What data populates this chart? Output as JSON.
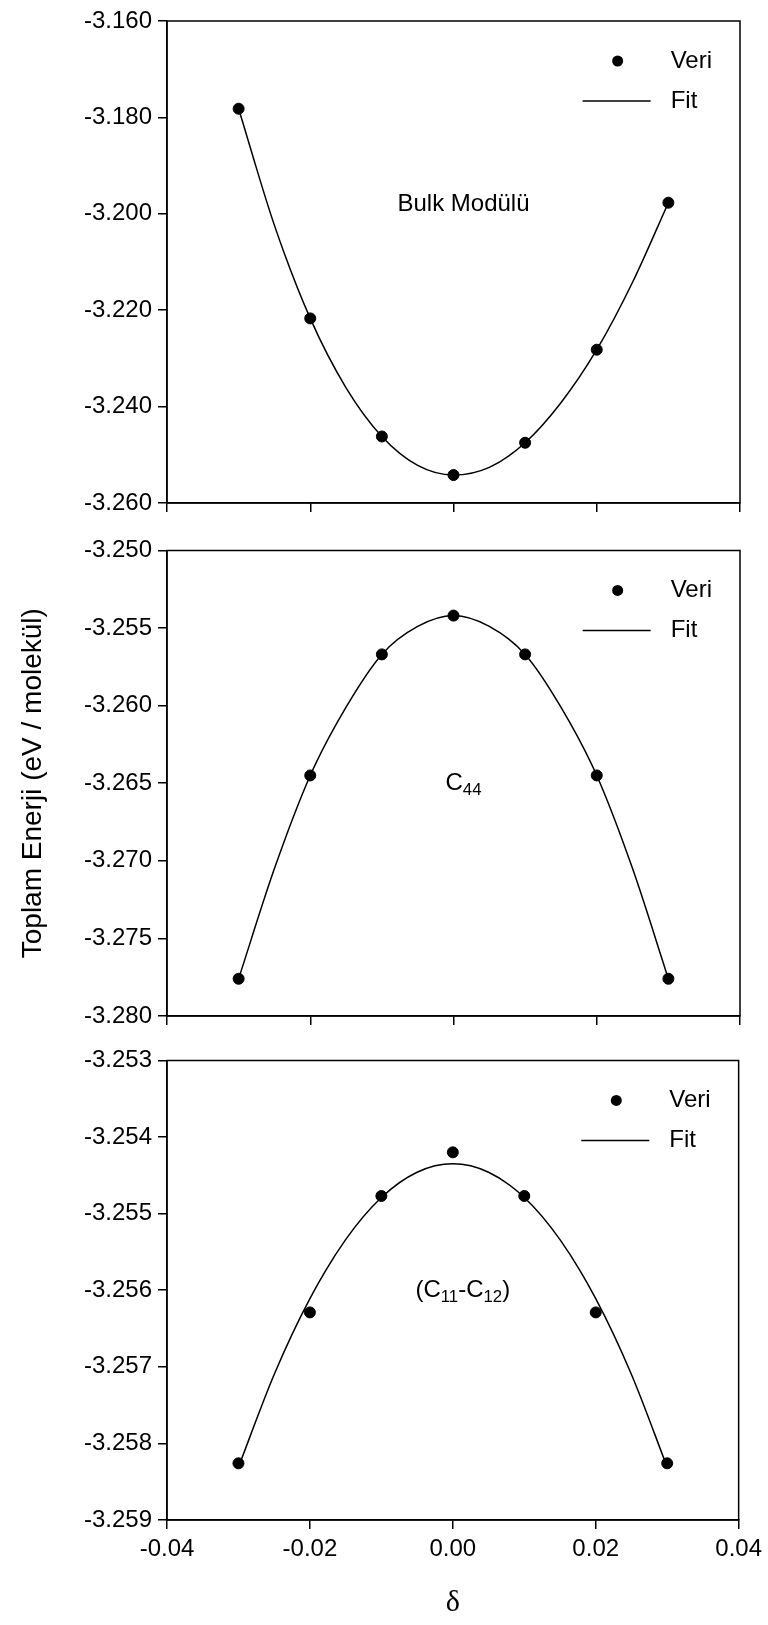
{
  "chart_data": [
    {
      "type": "scatter",
      "annotations": [
        "Bulk Modülü"
      ],
      "x": [
        -0.03,
        -0.02,
        -0.01,
        0.0,
        0.01,
        0.02,
        0.03
      ],
      "series": [
        {
          "name": "Veri",
          "type": "scatter",
          "marker": "circle",
          "color": "#000000",
          "values": [
            -3.1782,
            -3.2217,
            -3.2462,
            -3.2542,
            -3.2475,
            -3.2282,
            -3.1977
          ]
        },
        {
          "name": "Fit",
          "type": "line",
          "color": "#000000",
          "x": [
            -0.03,
            -0.025,
            -0.02,
            -0.015,
            -0.01,
            -0.005,
            0.0,
            0.005,
            0.01,
            0.015,
            0.02,
            0.025,
            0.03
          ],
          "values": [
            -3.1782,
            -3.2024,
            -3.2217,
            -3.2361,
            -3.2462,
            -3.2522,
            -3.2542,
            -3.2526,
            -3.2475,
            -3.2392,
            -3.2282,
            -3.2142,
            -3.1977
          ]
        }
      ],
      "xlim": [
        -0.04,
        0.04
      ],
      "xticks": [
        -0.04,
        -0.02,
        0,
        0.02,
        0.04
      ],
      "ylim": [
        -3.26,
        -3.16
      ],
      "yticks": [
        {
          "value": -3.26,
          "label": "-3.260"
        },
        {
          "value": -3.24,
          "label": "-3.240"
        },
        {
          "value": -3.22,
          "label": "-3.220"
        },
        {
          "value": -3.2,
          "label": "-3.200"
        },
        {
          "value": -3.18,
          "label": "-3.180"
        },
        {
          "value": -3.16,
          "label": "-3.160"
        }
      ],
      "tick_labels": "y",
      "legend": "top right"
    },
    {
      "type": "scatter",
      "ylabel": "Toplam Enerji (eV / molekül)",
      "annotations": [
        "C$_{44}$"
      ],
      "x": [
        -0.03,
        -0.02,
        -0.01,
        0.0,
        0.01,
        0.02,
        0.03
      ],
      "series": [
        {
          "name": "Veri",
          "type": "scatter",
          "marker": "circle",
          "color": "#000000",
          "values": [
            -3.2776,
            -3.2645,
            -3.2567,
            -3.2542,
            -3.2567,
            -3.2645,
            -3.2776
          ]
        },
        {
          "name": "Fit",
          "type": "line",
          "color": "#000000",
          "x": [
            -0.03,
            -0.025,
            -0.02,
            -0.015,
            -0.01,
            -0.005,
            0.0,
            0.005,
            0.01,
            0.015,
            0.02,
            0.025,
            0.03
          ],
          "values": [
            -3.2776,
            -3.2705,
            -3.2645,
            -3.2601,
            -3.2567,
            -3.2549,
            -3.2542,
            -3.2549,
            -3.2567,
            -3.2601,
            -3.2645,
            -3.2705,
            -3.2776
          ]
        }
      ],
      "xlim": [
        -0.04,
        0.04
      ],
      "xticks": [
        -0.04,
        -0.02,
        0,
        0.02,
        0.04
      ],
      "ylim": [
        -3.28,
        -3.25
      ],
      "yticks": [
        {
          "value": -3.28,
          "label": "-3.280"
        },
        -3.275,
        {
          "value": -3.27,
          "label": "-3.270"
        },
        -3.265,
        {
          "value": -3.26,
          "label": "-3.260"
        },
        -3.255,
        {
          "value": -3.25,
          "label": "-3.250"
        }
      ],
      "tick_labels": "y",
      "legend": "top right"
    },
    {
      "type": "scatter",
      "xlabel": "δ",
      "annotations": [
        "(C$_{11}$-C$_{12}$)"
      ],
      "x": [
        -0.03,
        -0.02,
        -0.01,
        0.0,
        0.01,
        0.02,
        0.03
      ],
      "series": [
        {
          "name": "Veri",
          "type": "scatter",
          "marker": "circle",
          "color": "#000000",
          "values": [
            -3.25826,
            -3.25629,
            -3.25477,
            -3.2542,
            -3.25477,
            -3.25629,
            -3.25826
          ]
        },
        {
          "name": "Fit",
          "type": "line",
          "color": "#000000",
          "x": [
            -0.03,
            -0.025,
            -0.02,
            -0.015,
            -0.01,
            -0.005,
            0.0,
            0.005,
            0.01,
            0.015,
            0.02,
            0.025,
            0.03
          ],
          "values": [
            -3.25831,
            -3.2571,
            -3.25611,
            -3.25534,
            -3.25479,
            -3.25446,
            -3.25435,
            -3.25446,
            -3.25479,
            -3.25534,
            -3.25611,
            -3.2571,
            -3.25831
          ]
        }
      ],
      "xlim": [
        -0.04,
        0.04
      ],
      "xticks": [
        -0.04,
        -0.02,
        {
          "value": 0,
          "label": "0.00"
        },
        0.02,
        0.04
      ],
      "ylim": [
        -3.259,
        -3.253
      ],
      "yticks": [
        -3.259,
        -3.258,
        -3.257,
        -3.256,
        -3.255,
        -3.254,
        -3.253
      ],
      "legend": "top right"
    }
  ]
}
